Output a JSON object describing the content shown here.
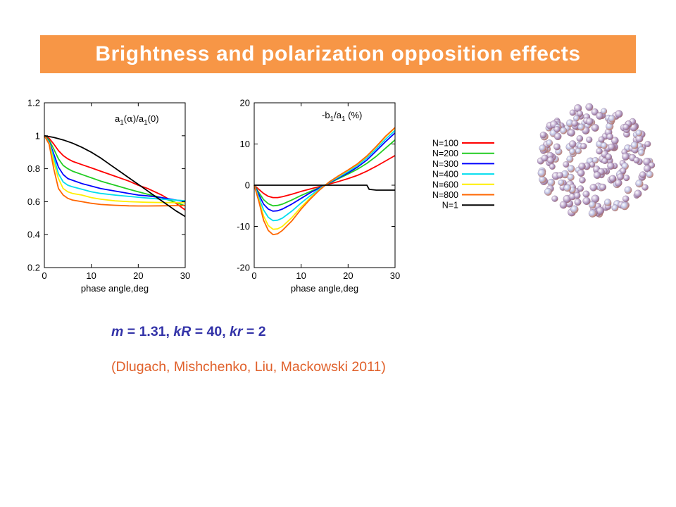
{
  "slide": {
    "title": "Brightness and polarization opposition effects",
    "params": {
      "m_sym": "m",
      "m_val": " = 1.31, ",
      "kR_sym": "kR",
      "kR_val": " = 40, ",
      "kr_sym": "kr",
      "kr_val": " = 2"
    },
    "citation": "(Dlugach, Mishchenko, Liu, Mackowski 2011)"
  },
  "colors": {
    "title_banner": "#F79646",
    "title_text": "#FFFFFF",
    "params_text": "#3333A8",
    "citation_text": "#E0602A",
    "N=100": "#FF0000",
    "N=200": "#22CC22",
    "N=300": "#0000FF",
    "N=400": "#00DDEE",
    "N=600": "#FFEE00",
    "N=800": "#FF6600",
    "N=1": "#000000"
  },
  "legend": [
    "N=100",
    "N=200",
    "N=300",
    "N=400",
    "N=600",
    "N=800",
    "N=1"
  ],
  "cluster_image": {
    "icon": "particle-cluster-icon",
    "description_visible": false
  },
  "chart_data": [
    {
      "type": "line",
      "id": "brightness",
      "title": "a1(α)/a1(0)",
      "xlabel": "phase angle,deg",
      "ylabel": "",
      "xlim": [
        0,
        30
      ],
      "ylim": [
        0.2,
        1.2
      ],
      "xticks": [
        0,
        10,
        20,
        30
      ],
      "yticks": [
        0.2,
        0.4,
        0.6,
        0.8,
        1,
        1.2
      ],
      "grid": false,
      "series": [
        {
          "name": "N=100",
          "x": [
            0,
            1,
            2,
            3,
            4,
            5,
            6,
            8,
            10,
            12,
            15,
            18,
            20,
            22,
            25,
            28,
            30
          ],
          "y": [
            1,
            0.985,
            0.95,
            0.91,
            0.88,
            0.86,
            0.845,
            0.825,
            0.805,
            0.785,
            0.755,
            0.725,
            0.7,
            0.68,
            0.64,
            0.59,
            0.55
          ]
        },
        {
          "name": "N=200",
          "x": [
            0,
            1,
            2,
            3,
            4,
            5,
            6,
            8,
            10,
            12,
            15,
            18,
            20,
            22,
            25,
            28,
            30
          ],
          "y": [
            1,
            0.975,
            0.92,
            0.86,
            0.82,
            0.8,
            0.785,
            0.765,
            0.745,
            0.725,
            0.7,
            0.675,
            0.66,
            0.645,
            0.625,
            0.595,
            0.575
          ]
        },
        {
          "name": "N=300",
          "x": [
            0,
            1,
            2,
            3,
            4,
            5,
            6,
            8,
            10,
            12,
            15,
            18,
            20,
            22,
            25,
            28,
            30
          ],
          "y": [
            1,
            0.965,
            0.89,
            0.81,
            0.765,
            0.74,
            0.73,
            0.71,
            0.695,
            0.68,
            0.665,
            0.65,
            0.64,
            0.635,
            0.625,
            0.61,
            0.6
          ]
        },
        {
          "name": "N=400",
          "x": [
            0,
            1,
            2,
            3,
            4,
            5,
            6,
            8,
            10,
            12,
            15,
            18,
            20,
            22,
            25,
            28,
            30
          ],
          "y": [
            1,
            0.96,
            0.87,
            0.77,
            0.72,
            0.7,
            0.69,
            0.675,
            0.66,
            0.65,
            0.64,
            0.632,
            0.627,
            0.622,
            0.615,
            0.61,
            0.605
          ]
        },
        {
          "name": "N=600",
          "x": [
            0,
            1,
            2,
            3,
            4,
            5,
            6,
            8,
            10,
            12,
            15,
            18,
            20,
            22,
            25,
            28,
            30
          ],
          "y": [
            1,
            0.955,
            0.84,
            0.74,
            0.68,
            0.66,
            0.65,
            0.64,
            0.625,
            0.615,
            0.605,
            0.6,
            0.598,
            0.596,
            0.595,
            0.594,
            0.593
          ]
        },
        {
          "name": "N=800",
          "x": [
            0,
            1,
            2,
            3,
            4,
            5,
            6,
            8,
            10,
            12,
            15,
            18,
            20,
            22,
            25,
            28,
            30
          ],
          "y": [
            1,
            0.95,
            0.8,
            0.68,
            0.64,
            0.62,
            0.61,
            0.6,
            0.59,
            0.583,
            0.578,
            0.575,
            0.574,
            0.574,
            0.575,
            0.576,
            0.577
          ]
        },
        {
          "name": "N=1",
          "x": [
            0,
            2,
            4,
            6,
            8,
            10,
            12,
            14,
            16,
            18,
            20,
            22,
            24,
            26,
            28,
            30
          ],
          "y": [
            1,
            0.99,
            0.975,
            0.955,
            0.93,
            0.9,
            0.865,
            0.825,
            0.785,
            0.745,
            0.705,
            0.665,
            0.625,
            0.585,
            0.545,
            0.51
          ]
        }
      ]
    },
    {
      "type": "line",
      "id": "polarization",
      "title": "-b1/a1 (%)",
      "xlabel": "phase angle,deg",
      "ylabel": "",
      "xlim": [
        0,
        30
      ],
      "ylim": [
        -20,
        20
      ],
      "xticks": [
        0,
        10,
        20,
        30
      ],
      "yticks": [
        -20,
        -10,
        0,
        10,
        20
      ],
      "grid": false,
      "series": [
        {
          "name": "N=100",
          "x": [
            0,
            1,
            2,
            3,
            4,
            5,
            6,
            8,
            10,
            12,
            14,
            16,
            18,
            20,
            22,
            24,
            26,
            28,
            30
          ],
          "y": [
            0,
            -1,
            -2,
            -2.7,
            -3,
            -3,
            -2.8,
            -2.2,
            -1.5,
            -0.9,
            -0.3,
            0.3,
            0.9,
            1.6,
            2.4,
            3.4,
            4.6,
            5.9,
            7.2
          ]
        },
        {
          "name": "N=200",
          "x": [
            0,
            1,
            2,
            3,
            4,
            5,
            6,
            8,
            10,
            12,
            14,
            16,
            18,
            20,
            22,
            24,
            26,
            28,
            30
          ],
          "y": [
            0,
            -1.8,
            -3.5,
            -4.5,
            -5,
            -4.9,
            -4.6,
            -3.6,
            -2.5,
            -1.5,
            -0.5,
            0.5,
            1.6,
            2.7,
            3.9,
            5.3,
            7,
            9,
            11
          ]
        },
        {
          "name": "N=300",
          "x": [
            0,
            1,
            2,
            3,
            4,
            5,
            6,
            8,
            10,
            12,
            14,
            16,
            18,
            20,
            22,
            24,
            26,
            28,
            30
          ],
          "y": [
            0,
            -2.3,
            -4.6,
            -5.8,
            -6.3,
            -6.2,
            -5.8,
            -4.6,
            -3.2,
            -1.8,
            -0.6,
            0.6,
            1.8,
            3,
            4.4,
            6.1,
            8.3,
            10.6,
            12.7
          ]
        },
        {
          "name": "N=400",
          "x": [
            0,
            1,
            2,
            3,
            4,
            5,
            6,
            8,
            10,
            12,
            14,
            16,
            18,
            20,
            22,
            24,
            26,
            28,
            30
          ],
          "y": [
            0,
            -3,
            -6,
            -7.8,
            -8.6,
            -8.5,
            -8,
            -6.3,
            -4.3,
            -2.5,
            -0.8,
            0.7,
            2,
            3.3,
            4.8,
            6.6,
            8.8,
            11.2,
            13.3
          ]
        },
        {
          "name": "N=600",
          "x": [
            0,
            1,
            2,
            3,
            4,
            5,
            6,
            8,
            10,
            12,
            14,
            16,
            18,
            20,
            22,
            24,
            26,
            28,
            30
          ],
          "y": [
            0,
            -3.6,
            -7.5,
            -9.8,
            -10.7,
            -10.6,
            -10,
            -7.9,
            -5.3,
            -3,
            -1,
            0.8,
            2.2,
            3.6,
            5.1,
            7,
            9.3,
            11.8,
            13.9
          ]
        },
        {
          "name": "N=800",
          "x": [
            0,
            1,
            2,
            3,
            4,
            5,
            6,
            8,
            10,
            12,
            14,
            16,
            18,
            20,
            22,
            24,
            26,
            28,
            30
          ],
          "y": [
            0,
            -4,
            -8.5,
            -11,
            -12,
            -11.8,
            -11,
            -8.7,
            -5.8,
            -3.3,
            -1.1,
            0.8,
            2.3,
            3.7,
            5.2,
            7.1,
            9.4,
            11.9,
            14
          ]
        },
        {
          "name": "N=1",
          "x": [
            0,
            5,
            10,
            15,
            20,
            24,
            24.5,
            26,
            28,
            30
          ],
          "y": [
            0,
            0,
            0,
            0,
            0,
            0,
            -1,
            -1.2,
            -1.2,
            -1.2
          ]
        }
      ]
    }
  ]
}
